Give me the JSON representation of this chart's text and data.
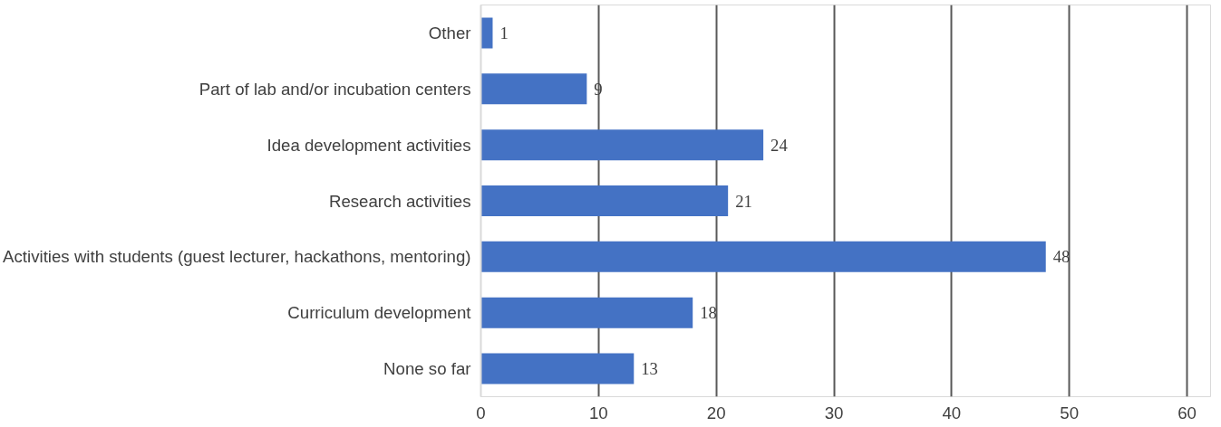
{
  "chart_data": {
    "type": "bar",
    "orientation": "horizontal",
    "categories": [
      "Other",
      "Part of lab and/or incubation centers",
      "Idea development activities",
      "Research activities",
      "Activities with students (guest lecturer, hackathons, mentoring)",
      "Curriculum development",
      "None so far"
    ],
    "values": [
      1,
      9,
      24,
      21,
      48,
      18,
      13
    ],
    "color": "#4472c4",
    "xlim": [
      0,
      62
    ],
    "xticks": [
      0,
      10,
      20,
      30,
      40,
      50,
      60
    ],
    "grid": "x",
    "data_labels": true
  }
}
